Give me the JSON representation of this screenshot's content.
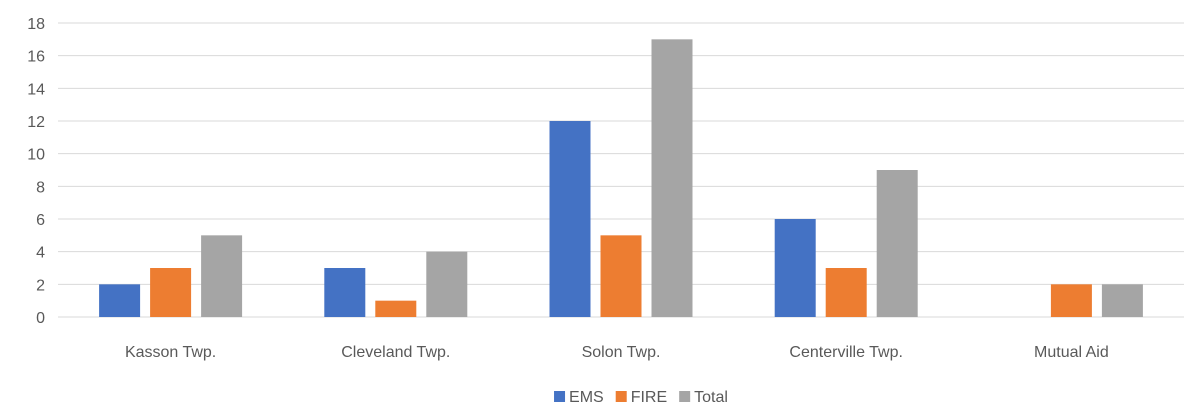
{
  "chart_data": {
    "type": "bar",
    "title": "",
    "xlabel": "",
    "ylabel": "",
    "categories": [
      "Kasson Twp.",
      "Cleveland Twp.",
      "Solon Twp.",
      "Centerville Twp.",
      "Mutual Aid"
    ],
    "series": [
      {
        "name": "EMS",
        "color": "#4472C4",
        "values": [
          2,
          3,
          12,
          6,
          0
        ]
      },
      {
        "name": "FIRE",
        "color": "#ED7D31",
        "values": [
          3,
          1,
          5,
          3,
          2
        ]
      },
      {
        "name": "Total",
        "color": "#A5A5A5",
        "values": [
          5,
          4,
          17,
          9,
          2
        ]
      }
    ],
    "ylim": [
      0,
      18
    ],
    "yticks": [
      0,
      2,
      4,
      6,
      8,
      10,
      12,
      14,
      16,
      18
    ],
    "grid": true,
    "legend_position": "bottom"
  }
}
